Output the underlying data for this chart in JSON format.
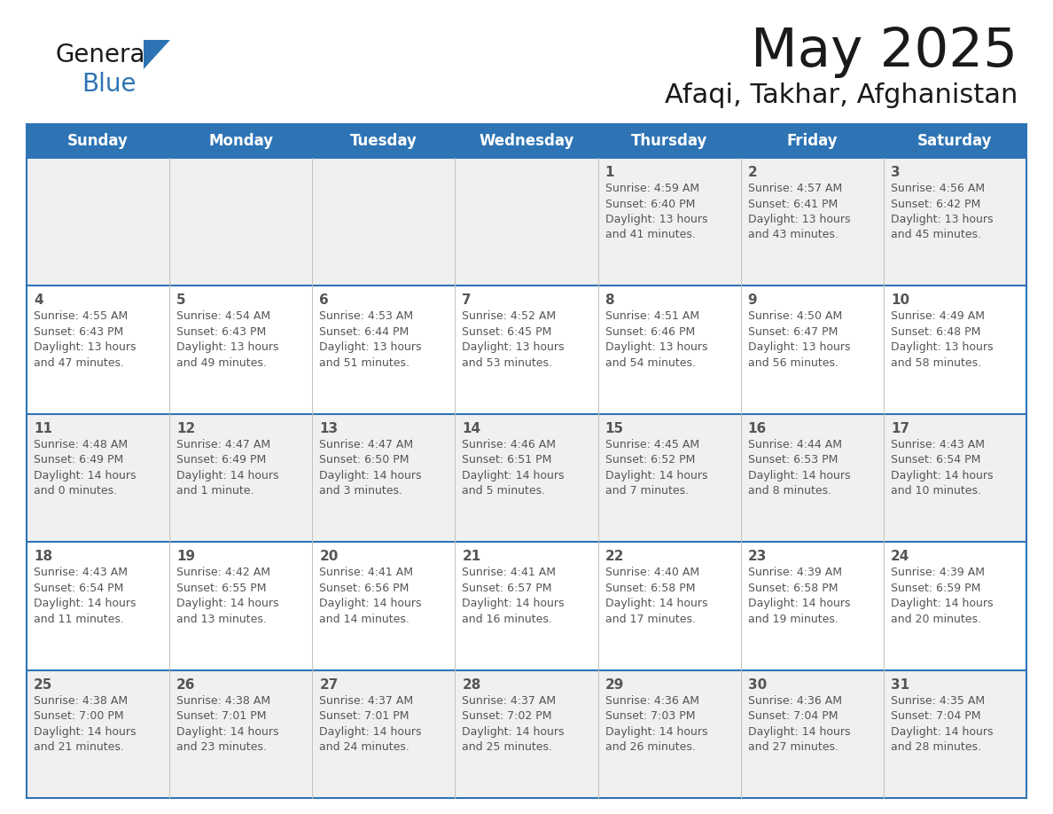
{
  "title": "May 2025",
  "subtitle": "Afaqi, Takhar, Afghanistan",
  "header_bg": "#2E74B5",
  "header_text_color": "#FFFFFF",
  "cell_bg_odd": "#F0F0F0",
  "cell_bg_even": "#FFFFFF",
  "day_names": [
    "Sunday",
    "Monday",
    "Tuesday",
    "Wednesday",
    "Thursday",
    "Friday",
    "Saturday"
  ],
  "logo_general_color": "#1a1a1a",
  "logo_blue_color": "#2E74B5",
  "title_color": "#1a1a1a",
  "subtitle_color": "#1a1a1a",
  "border_color": "#2E74B5",
  "vline_color": "#c0c0c0",
  "text_color": "#555555",
  "days": [
    {
      "day": 1,
      "col": 4,
      "row": 0,
      "sunrise": "4:59 AM",
      "sunset": "6:40 PM",
      "daylight_hours": 13,
      "daylight_minutes": 41
    },
    {
      "day": 2,
      "col": 5,
      "row": 0,
      "sunrise": "4:57 AM",
      "sunset": "6:41 PM",
      "daylight_hours": 13,
      "daylight_minutes": 43
    },
    {
      "day": 3,
      "col": 6,
      "row": 0,
      "sunrise": "4:56 AM",
      "sunset": "6:42 PM",
      "daylight_hours": 13,
      "daylight_minutes": 45
    },
    {
      "day": 4,
      "col": 0,
      "row": 1,
      "sunrise": "4:55 AM",
      "sunset": "6:43 PM",
      "daylight_hours": 13,
      "daylight_minutes": 47
    },
    {
      "day": 5,
      "col": 1,
      "row": 1,
      "sunrise": "4:54 AM",
      "sunset": "6:43 PM",
      "daylight_hours": 13,
      "daylight_minutes": 49
    },
    {
      "day": 6,
      "col": 2,
      "row": 1,
      "sunrise": "4:53 AM",
      "sunset": "6:44 PM",
      "daylight_hours": 13,
      "daylight_minutes": 51
    },
    {
      "day": 7,
      "col": 3,
      "row": 1,
      "sunrise": "4:52 AM",
      "sunset": "6:45 PM",
      "daylight_hours": 13,
      "daylight_minutes": 53
    },
    {
      "day": 8,
      "col": 4,
      "row": 1,
      "sunrise": "4:51 AM",
      "sunset": "6:46 PM",
      "daylight_hours": 13,
      "daylight_minutes": 54
    },
    {
      "day": 9,
      "col": 5,
      "row": 1,
      "sunrise": "4:50 AM",
      "sunset": "6:47 PM",
      "daylight_hours": 13,
      "daylight_minutes": 56
    },
    {
      "day": 10,
      "col": 6,
      "row": 1,
      "sunrise": "4:49 AM",
      "sunset": "6:48 PM",
      "daylight_hours": 13,
      "daylight_minutes": 58
    },
    {
      "day": 11,
      "col": 0,
      "row": 2,
      "sunrise": "4:48 AM",
      "sunset": "6:49 PM",
      "daylight_hours": 14,
      "daylight_minutes": 0
    },
    {
      "day": 12,
      "col": 1,
      "row": 2,
      "sunrise": "4:47 AM",
      "sunset": "6:49 PM",
      "daylight_hours": 14,
      "daylight_minutes": 1
    },
    {
      "day": 13,
      "col": 2,
      "row": 2,
      "sunrise": "4:47 AM",
      "sunset": "6:50 PM",
      "daylight_hours": 14,
      "daylight_minutes": 3
    },
    {
      "day": 14,
      "col": 3,
      "row": 2,
      "sunrise": "4:46 AM",
      "sunset": "6:51 PM",
      "daylight_hours": 14,
      "daylight_minutes": 5
    },
    {
      "day": 15,
      "col": 4,
      "row": 2,
      "sunrise": "4:45 AM",
      "sunset": "6:52 PM",
      "daylight_hours": 14,
      "daylight_minutes": 7
    },
    {
      "day": 16,
      "col": 5,
      "row": 2,
      "sunrise": "4:44 AM",
      "sunset": "6:53 PM",
      "daylight_hours": 14,
      "daylight_minutes": 8
    },
    {
      "day": 17,
      "col": 6,
      "row": 2,
      "sunrise": "4:43 AM",
      "sunset": "6:54 PM",
      "daylight_hours": 14,
      "daylight_minutes": 10
    },
    {
      "day": 18,
      "col": 0,
      "row": 3,
      "sunrise": "4:43 AM",
      "sunset": "6:54 PM",
      "daylight_hours": 14,
      "daylight_minutes": 11
    },
    {
      "day": 19,
      "col": 1,
      "row": 3,
      "sunrise": "4:42 AM",
      "sunset": "6:55 PM",
      "daylight_hours": 14,
      "daylight_minutes": 13
    },
    {
      "day": 20,
      "col": 2,
      "row": 3,
      "sunrise": "4:41 AM",
      "sunset": "6:56 PM",
      "daylight_hours": 14,
      "daylight_minutes": 14
    },
    {
      "day": 21,
      "col": 3,
      "row": 3,
      "sunrise": "4:41 AM",
      "sunset": "6:57 PM",
      "daylight_hours": 14,
      "daylight_minutes": 16
    },
    {
      "day": 22,
      "col": 4,
      "row": 3,
      "sunrise": "4:40 AM",
      "sunset": "6:58 PM",
      "daylight_hours": 14,
      "daylight_minutes": 17
    },
    {
      "day": 23,
      "col": 5,
      "row": 3,
      "sunrise": "4:39 AM",
      "sunset": "6:58 PM",
      "daylight_hours": 14,
      "daylight_minutes": 19
    },
    {
      "day": 24,
      "col": 6,
      "row": 3,
      "sunrise": "4:39 AM",
      "sunset": "6:59 PM",
      "daylight_hours": 14,
      "daylight_minutes": 20
    },
    {
      "day": 25,
      "col": 0,
      "row": 4,
      "sunrise": "4:38 AM",
      "sunset": "7:00 PM",
      "daylight_hours": 14,
      "daylight_minutes": 21
    },
    {
      "day": 26,
      "col": 1,
      "row": 4,
      "sunrise": "4:38 AM",
      "sunset": "7:01 PM",
      "daylight_hours": 14,
      "daylight_minutes": 23
    },
    {
      "day": 27,
      "col": 2,
      "row": 4,
      "sunrise": "4:37 AM",
      "sunset": "7:01 PM",
      "daylight_hours": 14,
      "daylight_minutes": 24
    },
    {
      "day": 28,
      "col": 3,
      "row": 4,
      "sunrise": "4:37 AM",
      "sunset": "7:02 PM",
      "daylight_hours": 14,
      "daylight_minutes": 25
    },
    {
      "day": 29,
      "col": 4,
      "row": 4,
      "sunrise": "4:36 AM",
      "sunset": "7:03 PM",
      "daylight_hours": 14,
      "daylight_minutes": 26
    },
    {
      "day": 30,
      "col": 5,
      "row": 4,
      "sunrise": "4:36 AM",
      "sunset": "7:04 PM",
      "daylight_hours": 14,
      "daylight_minutes": 27
    },
    {
      "day": 31,
      "col": 6,
      "row": 4,
      "sunrise": "4:35 AM",
      "sunset": "7:04 PM",
      "daylight_hours": 14,
      "daylight_minutes": 28
    }
  ]
}
